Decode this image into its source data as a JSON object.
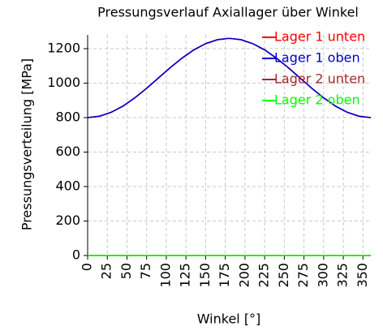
{
  "chart_data": {
    "type": "line",
    "title": "Pressungsverlauf Axiallager über Winkel",
    "x_label": "Winkel [°]",
    "y_label": "Pressungsverteilung [MPa]",
    "x": [
      0,
      15,
      30,
      45,
      60,
      75,
      90,
      105,
      120,
      135,
      150,
      165,
      180,
      195,
      210,
      225,
      240,
      255,
      270,
      285,
      300,
      315,
      330,
      345,
      360
    ],
    "series": [
      {
        "name": "Lager 1 unten",
        "color": "#ff0000",
        "values": [
          800,
          808,
          831,
          867,
          915,
          970,
          1030,
          1090,
          1145,
          1193,
          1229,
          1252,
          1260,
          1252,
          1229,
          1193,
          1145,
          1090,
          1030,
          970,
          915,
          867,
          831,
          808,
          800
        ]
      },
      {
        "name": "Lager 1 oben",
        "color": "#0000cc",
        "values": [
          800,
          808,
          831,
          867,
          915,
          970,
          1030,
          1090,
          1145,
          1193,
          1229,
          1252,
          1260,
          1252,
          1229,
          1193,
          1145,
          1090,
          1030,
          970,
          915,
          867,
          831,
          808,
          800
        ]
      },
      {
        "name": "Lager 2 unten",
        "color": "#a52a2a",
        "values": [
          0,
          0,
          0,
          0,
          0,
          0,
          0,
          0,
          0,
          0,
          0,
          0,
          0,
          0,
          0,
          0,
          0,
          0,
          0,
          0,
          0,
          0,
          0,
          0,
          0
        ]
      },
      {
        "name": "Lager 2 oben",
        "color": "#00ff00",
        "values": [
          0,
          0,
          0,
          0,
          0,
          0,
          0,
          0,
          0,
          0,
          0,
          0,
          0,
          0,
          0,
          0,
          0,
          0,
          0,
          0,
          0,
          0,
          0,
          0,
          0
        ]
      }
    ],
    "xlim": [
      0,
      360
    ],
    "xticks": [
      0,
      25,
      50,
      75,
      100,
      125,
      150,
      175,
      200,
      225,
      250,
      275,
      300,
      325,
      350
    ],
    "ylim": [
      0,
      1280
    ],
    "yticks": [
      0,
      200,
      400,
      600,
      800,
      1000,
      1200
    ],
    "grid": true,
    "legend": "upper right"
  }
}
